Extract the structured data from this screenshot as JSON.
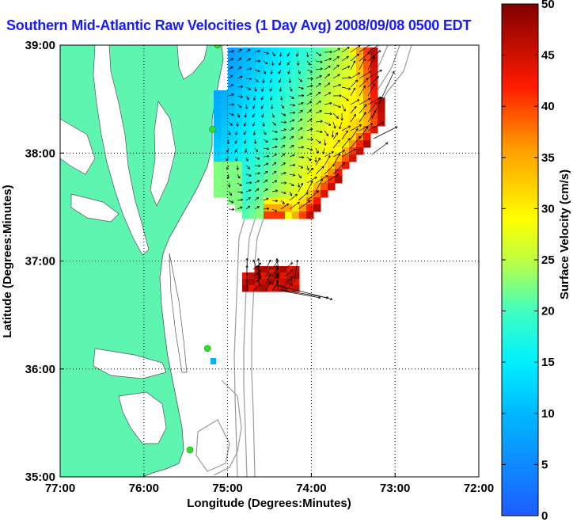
{
  "title": "Southern Mid-Atlantic Raw Velocities (1 Day Avg) 2008/09/08 0500 EDT",
  "map": {
    "xlabel": "Longitude (Degrees:Minutes)",
    "ylabel": "Latitude (Degrees:Minutes)",
    "x_ticks": [
      "77:00",
      "76:00",
      "75:00",
      "74:00",
      "73:00",
      "72:00"
    ],
    "y_ticks": [
      "39:00",
      "38:00",
      "37:00",
      "36:00",
      "35:00"
    ],
    "xlim": [
      -77,
      -72
    ],
    "ylim": [
      35,
      39
    ],
    "grid": "dotted",
    "land_color": "#5ef5b0",
    "coast_outline_color": "#555555",
    "bathymetry_color": "#9a9a9a",
    "station_marker_color": "#33dd33"
  },
  "colorbar": {
    "label": "Surface Velocity (cm/s)",
    "ticks": [
      "50",
      "45",
      "40",
      "35",
      "30",
      "25",
      "20",
      "15",
      "10",
      "5",
      "0"
    ],
    "range": [
      0,
      50
    ]
  },
  "stations": [
    {
      "lon": -75.12,
      "lat": 39.0
    },
    {
      "lon": -75.18,
      "lat": 38.22
    },
    {
      "lon": -75.24,
      "lat": 36.19
    },
    {
      "lon": -75.45,
      "lat": 35.25
    }
  ]
}
